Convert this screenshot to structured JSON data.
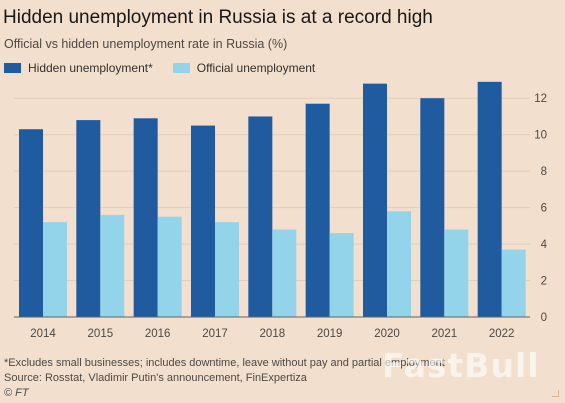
{
  "chart_data": {
    "type": "bar",
    "title": "Hidden unemployment in Russia is at a record high",
    "subtitle": "Official vs hidden unemployment rate in Russia (%)",
    "categories": [
      "2014",
      "2015",
      "2016",
      "2017",
      "2018",
      "2019",
      "2020",
      "2021",
      "2022"
    ],
    "series": [
      {
        "name": "Hidden unemployment*",
        "color": "#1f5b9e",
        "values": [
          10.3,
          10.8,
          10.9,
          10.5,
          11.0,
          11.7,
          12.8,
          12.0,
          12.9
        ]
      },
      {
        "name": "Official unemployment",
        "color": "#94d4eb",
        "values": [
          5.2,
          5.6,
          5.5,
          5.2,
          4.8,
          4.6,
          5.8,
          4.8,
          3.7
        ]
      }
    ],
    "ylim": [
      0,
      13
    ],
    "yticks": [
      0,
      2,
      4,
      6,
      8,
      10,
      12
    ],
    "y_axis_side": "right",
    "grid": true,
    "legend_position": "top-left"
  },
  "footnote": "*Excludes small businesses; includes downtime, leave without pay and partial employment",
  "source": "Source: Rosstat, Vladimir Putin's announcement, FinExpertiza",
  "credit": "© FT",
  "watermark": "FastBull"
}
